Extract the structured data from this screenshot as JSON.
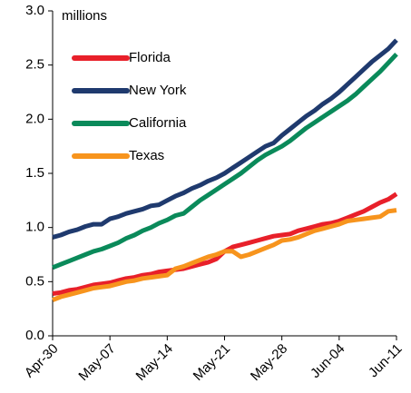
{
  "chart_data": {
    "type": "line",
    "y_label": "millions",
    "categories": [
      "Apr-30",
      null,
      null,
      null,
      null,
      null,
      null,
      "May-07",
      null,
      null,
      null,
      null,
      null,
      null,
      "May-14",
      null,
      null,
      null,
      null,
      null,
      null,
      "May-21",
      null,
      null,
      null,
      null,
      null,
      null,
      "May-28",
      null,
      null,
      null,
      null,
      null,
      null,
      "Jun-04",
      null,
      null,
      null,
      null,
      null,
      null,
      "Jun-11"
    ],
    "series": [
      {
        "name": "Florida",
        "color": "#e8202a",
        "values": [
          0.39,
          0.4,
          0.42,
          0.43,
          0.45,
          0.47,
          0.48,
          0.49,
          0.51,
          0.53,
          0.54,
          0.56,
          0.57,
          0.59,
          0.6,
          0.61,
          0.62,
          0.64,
          0.66,
          0.68,
          0.71,
          0.78,
          0.82,
          0.84,
          0.86,
          0.88,
          0.9,
          0.92,
          0.93,
          0.94,
          0.97,
          0.99,
          1.01,
          1.03,
          1.04,
          1.06,
          1.09,
          1.12,
          1.15,
          1.19,
          1.23,
          1.26,
          1.31
        ]
      },
      {
        "name": "New York",
        "color": "#1f3a6e",
        "values": [
          0.91,
          0.93,
          0.96,
          0.98,
          1.01,
          1.03,
          1.03,
          1.08,
          1.1,
          1.13,
          1.15,
          1.17,
          1.2,
          1.21,
          1.25,
          1.29,
          1.32,
          1.36,
          1.39,
          1.43,
          1.46,
          1.5,
          1.55,
          1.6,
          1.65,
          1.7,
          1.75,
          1.78,
          1.85,
          1.91,
          1.97,
          2.03,
          2.08,
          2.14,
          2.19,
          2.25,
          2.32,
          2.39,
          2.46,
          2.53,
          2.59,
          2.65,
          2.73
        ]
      },
      {
        "name": "California",
        "color": "#0a8a5a",
        "values": [
          0.63,
          0.66,
          0.69,
          0.72,
          0.75,
          0.78,
          0.8,
          0.83,
          0.86,
          0.9,
          0.93,
          0.97,
          1.0,
          1.04,
          1.07,
          1.11,
          1.13,
          1.19,
          1.25,
          1.3,
          1.35,
          1.4,
          1.45,
          1.5,
          1.56,
          1.62,
          1.67,
          1.71,
          1.75,
          1.8,
          1.86,
          1.92,
          1.97,
          2.02,
          2.07,
          2.12,
          2.17,
          2.23,
          2.3,
          2.37,
          2.44,
          2.52,
          2.6
        ]
      },
      {
        "name": "Texas",
        "color": "#f7941d",
        "values": [
          0.33,
          0.36,
          0.38,
          0.4,
          0.42,
          0.44,
          0.45,
          0.46,
          0.48,
          0.5,
          0.51,
          0.53,
          0.54,
          0.55,
          0.56,
          0.62,
          0.64,
          0.67,
          0.7,
          0.73,
          0.75,
          0.78,
          0.78,
          0.73,
          0.75,
          0.78,
          0.81,
          0.84,
          0.88,
          0.89,
          0.91,
          0.94,
          0.97,
          0.99,
          1.01,
          1.03,
          1.06,
          1.07,
          1.08,
          1.09,
          1.1,
          1.15,
          1.16
        ]
      }
    ],
    "ylim": [
      0,
      3
    ],
    "yticks": [
      {
        "value": 0,
        "label": "0.0"
      },
      0.5,
      {
        "value": 1,
        "label": "1.0"
      },
      1.5,
      {
        "value": 2,
        "label": "2.0"
      },
      2.5,
      {
        "value": 3,
        "label": "3.0"
      }
    ],
    "grid": false
  }
}
